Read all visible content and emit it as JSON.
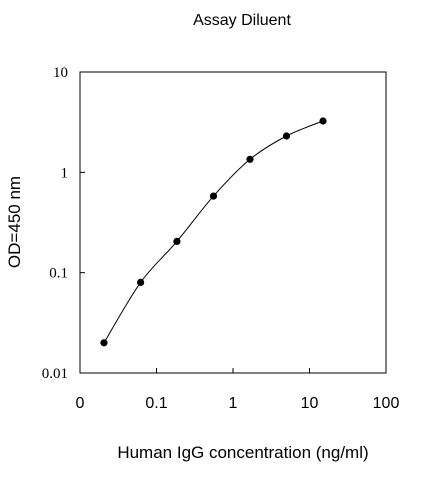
{
  "chart_data": {
    "type": "line",
    "title": "Assay Diluent",
    "xlabel": "Human IgG concentration (ng/ml)",
    "ylabel": "OD=450 nm",
    "x_scale": "log",
    "y_scale": "log",
    "xlim": [
      0.01,
      100
    ],
    "ylim": [
      0.01,
      10
    ],
    "x_ticks": [
      "0",
      "0.1",
      "1",
      "10",
      "100"
    ],
    "y_ticks": [
      "0.01",
      "0.1",
      "1",
      "10"
    ],
    "grid": false,
    "legend": "none",
    "series": [
      {
        "x": [
          0.0206,
          0.062,
          0.185,
          0.556,
          1.667,
          5.0,
          15.0
        ],
        "y": [
          0.02,
          0.08,
          0.205,
          0.58,
          1.35,
          2.3,
          3.25
        ],
        "marker": "filled-circle",
        "color": "#000000"
      }
    ]
  }
}
